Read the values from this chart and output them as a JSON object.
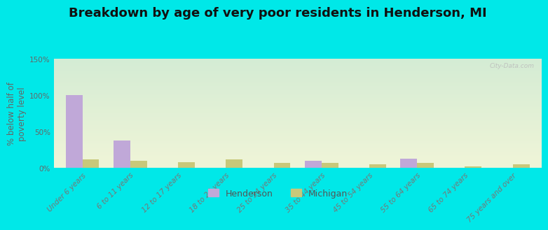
{
  "title": "Breakdown by age of very poor residents in Henderson, MI",
  "ylabel": "% below half of\npoverty level",
  "categories": [
    "Under 6 years",
    "6 to 11 years",
    "12 to 17 years",
    "18 to 24 years",
    "25 to 34 years",
    "35 to 44 years",
    "45 to 54 years",
    "55 to 64 years",
    "65 to 74 years",
    "75 years and over"
  ],
  "henderson_values": [
    100,
    38,
    0,
    0,
    0,
    10,
    0,
    13,
    0,
    0
  ],
  "michigan_values": [
    12,
    10,
    8,
    12,
    7,
    7,
    5,
    7,
    2,
    5
  ],
  "henderson_color": "#c0a8d8",
  "michigan_color": "#c8c87a",
  "background_color": "#00e8e8",
  "grad_top": "#d4ecd4",
  "grad_bottom": "#f0f5d8",
  "ylim": [
    0,
    150
  ],
  "yticks": [
    0,
    50,
    100,
    150
  ],
  "ytick_labels": [
    "0%",
    "50%",
    "100%",
    "150%"
  ],
  "bar_width": 0.35,
  "title_fontsize": 13,
  "axis_fontsize": 8.5,
  "tick_fontsize": 7.5,
  "watermark": "City-Data.com",
  "legend_henderson": "Henderson",
  "legend_michigan": "Michigan"
}
